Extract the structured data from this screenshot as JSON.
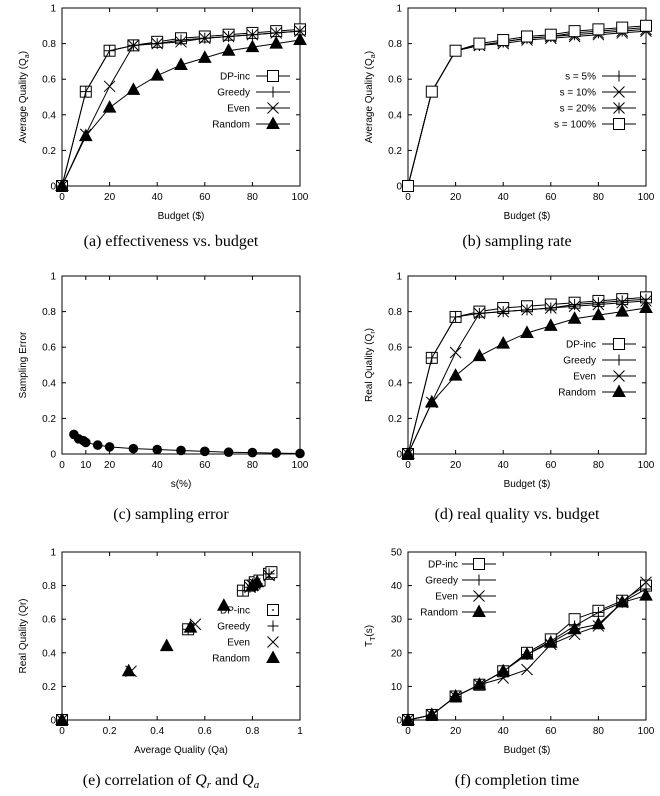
{
  "chart_data": [
    {
      "type": "line",
      "caption": "(a) effectiveness vs. budget",
      "xlabel": "Budget ($)",
      "ylabel": "Average Quality (Q",
      "ylabel_sub": "a",
      "ylabel_end": ")",
      "xlim": [
        0,
        100
      ],
      "ylim": [
        0,
        1
      ],
      "xticks": [
        0,
        20,
        40,
        60,
        80,
        100
      ],
      "yticks": [
        0,
        0.2,
        0.4,
        0.6,
        0.8,
        1
      ],
      "legend_position": "bottom-right",
      "series": [
        {
          "name": "DP-inc",
          "marker": "square",
          "x": [
            0,
            10,
            20,
            30,
            40,
            50,
            60,
            70,
            80,
            90,
            100
          ],
          "y": [
            0,
            0.53,
            0.76,
            0.79,
            0.81,
            0.83,
            0.84,
            0.85,
            0.86,
            0.87,
            0.88
          ]
        },
        {
          "name": "Greedy",
          "marker": "plus",
          "x": [
            0,
            10,
            20,
            30,
            40,
            50,
            60,
            70,
            80,
            90,
            100
          ],
          "y": [
            0,
            0.53,
            0.76,
            0.79,
            0.8,
            0.82,
            0.83,
            0.84,
            0.85,
            0.86,
            0.87
          ]
        },
        {
          "name": "Even",
          "marker": "cross",
          "x": [
            0,
            10,
            20,
            30,
            40,
            50,
            60,
            70,
            80,
            90,
            100
          ],
          "y": [
            0,
            0.29,
            0.56,
            0.79,
            0.8,
            0.81,
            0.83,
            0.84,
            0.85,
            0.86,
            0.87
          ]
        },
        {
          "name": "Random",
          "marker": "triangle",
          "x": [
            0,
            10,
            20,
            30,
            40,
            50,
            60,
            70,
            80,
            90,
            100
          ],
          "y": [
            0,
            0.28,
            0.44,
            0.54,
            0.62,
            0.68,
            0.72,
            0.76,
            0.78,
            0.8,
            0.82
          ]
        }
      ]
    },
    {
      "type": "line",
      "caption": "(b) sampling rate",
      "xlabel": "Budget ($)",
      "ylabel": "Average Quality (Q",
      "ylabel_sub": "a",
      "ylabel_end": ")",
      "xlim": [
        0,
        100
      ],
      "ylim": [
        0,
        1
      ],
      "xticks": [
        0,
        20,
        40,
        60,
        80,
        100
      ],
      "yticks": [
        0,
        0.2,
        0.4,
        0.6,
        0.8,
        1
      ],
      "legend_position": "bottom-right",
      "series": [
        {
          "name": "s = 5%",
          "marker": "plus",
          "x": [
            0,
            10,
            20,
            30,
            40,
            50,
            60,
            70,
            80,
            90,
            100
          ],
          "y": [
            0,
            0.53,
            0.76,
            0.79,
            0.81,
            0.83,
            0.84,
            0.86,
            0.87,
            0.88,
            0.89
          ]
        },
        {
          "name": "s = 10%",
          "marker": "cross",
          "x": [
            0,
            10,
            20,
            30,
            40,
            50,
            60,
            70,
            80,
            90,
            100
          ],
          "y": [
            0,
            0.53,
            0.76,
            0.79,
            0.8,
            0.82,
            0.83,
            0.84,
            0.85,
            0.86,
            0.87
          ]
        },
        {
          "name": "s = 20%",
          "marker": "star",
          "x": [
            0,
            10,
            20,
            30,
            40,
            50,
            60,
            70,
            80,
            90,
            100
          ],
          "y": [
            0,
            0.53,
            0.76,
            0.79,
            0.81,
            0.83,
            0.84,
            0.85,
            0.86,
            0.87,
            0.88
          ]
        },
        {
          "name": "s = 100%",
          "marker": "square",
          "x": [
            0,
            10,
            20,
            30,
            40,
            50,
            60,
            70,
            80,
            90,
            100
          ],
          "y": [
            0,
            0.53,
            0.76,
            0.8,
            0.82,
            0.84,
            0.85,
            0.87,
            0.88,
            0.89,
            0.9
          ]
        }
      ]
    },
    {
      "type": "scatter",
      "caption": "(c) sampling error",
      "xlabel": "s(%)",
      "ylabel": "Sampling Error",
      "xlim": [
        0,
        100
      ],
      "ylim": [
        0,
        1
      ],
      "xticks": [
        0,
        10,
        20,
        40,
        60,
        80,
        100
      ],
      "yticks": [
        0,
        0.2,
        0.4,
        0.6,
        0.8,
        1
      ],
      "legend_position": "none",
      "series": [
        {
          "name": "",
          "marker": "circle",
          "connected": true,
          "x": [
            5,
            7,
            9,
            10,
            15,
            20,
            30,
            40,
            50,
            60,
            70,
            80,
            90,
            100
          ],
          "y": [
            0.11,
            0.085,
            0.075,
            0.065,
            0.05,
            0.04,
            0.03,
            0.025,
            0.02,
            0.015,
            0.01,
            0.008,
            0.005,
            0.003
          ]
        }
      ]
    },
    {
      "type": "line",
      "caption": "(d) real quality vs. budget",
      "xlabel": "Budget ($)",
      "ylabel": "Real Quality (Q",
      "ylabel_sub": "r",
      "ylabel_end": ")",
      "xlim": [
        0,
        100
      ],
      "ylim": [
        0,
        1
      ],
      "xticks": [
        0,
        20,
        40,
        60,
        80,
        100
      ],
      "yticks": [
        0,
        0.2,
        0.4,
        0.6,
        0.8,
        1
      ],
      "legend_position": "bottom-right",
      "series": [
        {
          "name": "DP-inc",
          "marker": "square",
          "x": [
            0,
            10,
            20,
            30,
            40,
            50,
            60,
            70,
            80,
            90,
            100
          ],
          "y": [
            0,
            0.54,
            0.77,
            0.8,
            0.82,
            0.83,
            0.84,
            0.85,
            0.86,
            0.87,
            0.88
          ]
        },
        {
          "name": "Greedy",
          "marker": "plus",
          "x": [
            0,
            10,
            20,
            30,
            40,
            50,
            60,
            70,
            80,
            90,
            100
          ],
          "y": [
            0,
            0.54,
            0.77,
            0.79,
            0.8,
            0.81,
            0.82,
            0.84,
            0.85,
            0.86,
            0.87
          ]
        },
        {
          "name": "Even",
          "marker": "cross",
          "x": [
            0,
            10,
            20,
            30,
            40,
            50,
            60,
            70,
            80,
            90,
            100
          ],
          "y": [
            0,
            0.29,
            0.57,
            0.79,
            0.8,
            0.81,
            0.82,
            0.83,
            0.84,
            0.85,
            0.86
          ]
        },
        {
          "name": "Random",
          "marker": "triangle",
          "x": [
            0,
            10,
            20,
            30,
            40,
            50,
            60,
            70,
            80,
            90,
            100
          ],
          "y": [
            0,
            0.29,
            0.44,
            0.55,
            0.62,
            0.68,
            0.72,
            0.76,
            0.78,
            0.8,
            0.82
          ]
        }
      ]
    },
    {
      "type": "scatter",
      "caption_parts": [
        "(e) correlation of ",
        "Q",
        "r",
        " and ",
        "Q",
        "a"
      ],
      "xlabel": "Average Quality (Qa)",
      "ylabel": "Real Quality (Qr)",
      "xlim": [
        0,
        1
      ],
      "ylim": [
        0,
        1
      ],
      "xticks": [
        0,
        0.2,
        0.4,
        0.6,
        0.8,
        1
      ],
      "yticks": [
        0,
        0.2,
        0.4,
        0.6,
        0.8,
        1
      ],
      "legend_position": "bottom-right",
      "series": [
        {
          "name": "DP-inc",
          "marker": "square-dot",
          "x": [
            0,
            0.53,
            0.76,
            0.79,
            0.81,
            0.83,
            0.87,
            0.88
          ],
          "y": [
            0,
            0.54,
            0.77,
            0.8,
            0.82,
            0.83,
            0.87,
            0.88
          ]
        },
        {
          "name": "Greedy",
          "marker": "plus",
          "x": [
            0,
            0.53,
            0.76,
            0.79,
            0.8,
            0.82,
            0.87
          ],
          "y": [
            0,
            0.54,
            0.77,
            0.79,
            0.8,
            0.81,
            0.87
          ]
        },
        {
          "name": "Even",
          "marker": "cross",
          "x": [
            0,
            0.29,
            0.56,
            0.79,
            0.8,
            0.81,
            0.87
          ],
          "y": [
            0,
            0.29,
            0.57,
            0.79,
            0.8,
            0.81,
            0.86
          ]
        },
        {
          "name": "Random",
          "marker": "triangle",
          "x": [
            0,
            0.28,
            0.44,
            0.54,
            0.68,
            0.8,
            0.82
          ],
          "y": [
            0,
            0.29,
            0.44,
            0.55,
            0.68,
            0.8,
            0.82
          ]
        }
      ]
    },
    {
      "type": "line",
      "caption": "(f) completion time",
      "xlabel": "Budget ($)",
      "ylabel": "T",
      "ylabel_sub": "T",
      "ylabel_end": "(s)",
      "xlim": [
        0,
        100
      ],
      "ylim": [
        0,
        50
      ],
      "xticks": [
        0,
        20,
        40,
        60,
        80,
        100
      ],
      "yticks": [
        0,
        10,
        20,
        30,
        40,
        50
      ],
      "legend_position": "top-left",
      "series": [
        {
          "name": "DP-inc",
          "marker": "square",
          "x": [
            0,
            10,
            20,
            30,
            40,
            50,
            60,
            70,
            80,
            90,
            100
          ],
          "y": [
            0,
            1.5,
            7,
            10.5,
            14.5,
            20,
            24,
            30,
            32.5,
            35.5,
            40
          ]
        },
        {
          "name": "Greedy",
          "marker": "plus",
          "x": [
            0,
            10,
            20,
            30,
            40,
            50,
            60,
            70,
            80,
            90,
            100
          ],
          "y": [
            0,
            1.5,
            7,
            10.5,
            14.5,
            19.5,
            23.5,
            28,
            32,
            35,
            39
          ]
        },
        {
          "name": "Even",
          "marker": "cross",
          "x": [
            0,
            10,
            20,
            30,
            40,
            50,
            60,
            70,
            80,
            90,
            100
          ],
          "y": [
            0,
            1.5,
            7,
            10.5,
            12.5,
            15,
            22.5,
            25.5,
            28,
            35,
            41
          ]
        },
        {
          "name": "Random",
          "marker": "triangle",
          "x": [
            0,
            10,
            20,
            30,
            40,
            50,
            60,
            70,
            80,
            90,
            100
          ],
          "y": [
            0,
            1.5,
            7,
            10.5,
            14.5,
            19.5,
            23,
            27,
            28.5,
            35,
            37
          ]
        }
      ]
    }
  ]
}
